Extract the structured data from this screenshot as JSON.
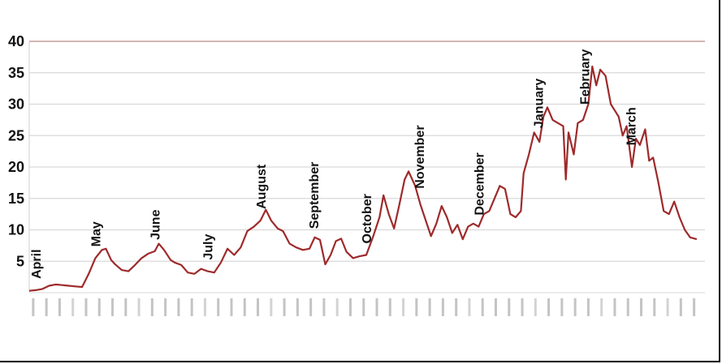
{
  "chart_data": {
    "type": "line",
    "title": "",
    "xlabel": "",
    "ylabel": "",
    "ylim": [
      0,
      40
    ],
    "yticks": [
      "5",
      "10",
      "15",
      "20",
      "25",
      "30",
      "35",
      "40"
    ],
    "grid": true,
    "line_color": "#9e2a2b",
    "month_annotations": [
      {
        "label": "April",
        "x": 0.5
      },
      {
        "label": "May",
        "x": 5
      },
      {
        "label": "June",
        "x": 9.5
      },
      {
        "label": "July",
        "x": 13.5
      },
      {
        "label": "August",
        "x": 17.5
      },
      {
        "label": "September",
        "x": 21.5
      },
      {
        "label": "October",
        "x": 25.5
      },
      {
        "label": "November",
        "x": 29.5
      },
      {
        "label": "December",
        "x": 34
      },
      {
        "label": "January",
        "x": 38.5
      },
      {
        "label": "February",
        "x": 42
      },
      {
        "label": "March",
        "x": 45.5
      }
    ],
    "series": [
      {
        "values": [
          [
            0,
            0.3
          ],
          [
            0.5,
            0.4
          ],
          [
            1,
            0.6
          ],
          [
            1.5,
            1.1
          ],
          [
            2,
            1.3
          ],
          [
            2.5,
            1.2
          ],
          [
            3,
            1.1
          ],
          [
            3.5,
            1.0
          ],
          [
            4,
            0.9
          ],
          [
            4.5,
            3.0
          ],
          [
            5,
            5.5
          ],
          [
            5.5,
            6.8
          ],
          [
            5.8,
            7.0
          ],
          [
            6.2,
            5.2
          ],
          [
            6.5,
            4.5
          ],
          [
            7,
            3.6
          ],
          [
            7.5,
            3.4
          ],
          [
            8,
            4.4
          ],
          [
            8.5,
            5.5
          ],
          [
            9,
            6.2
          ],
          [
            9.5,
            6.6
          ],
          [
            9.8,
            7.8
          ],
          [
            10.2,
            6.8
          ],
          [
            10.7,
            5.2
          ],
          [
            11,
            4.8
          ],
          [
            11.5,
            4.4
          ],
          [
            12,
            3.2
          ],
          [
            12.5,
            3.0
          ],
          [
            13,
            3.8
          ],
          [
            13.5,
            3.4
          ],
          [
            14,
            3.2
          ],
          [
            14.5,
            4.8
          ],
          [
            15,
            7.0
          ],
          [
            15.5,
            6.0
          ],
          [
            16,
            7.2
          ],
          [
            16.5,
            9.8
          ],
          [
            17,
            10.5
          ],
          [
            17.5,
            11.5
          ],
          [
            17.9,
            13.2
          ],
          [
            18.3,
            11.5
          ],
          [
            18.8,
            10.2
          ],
          [
            19.2,
            9.8
          ],
          [
            19.7,
            7.8
          ],
          [
            20.2,
            7.2
          ],
          [
            20.7,
            6.8
          ],
          [
            21.2,
            7.0
          ],
          [
            21.6,
            8.8
          ],
          [
            22,
            8.4
          ],
          [
            22.4,
            4.5
          ],
          [
            22.8,
            6.0
          ],
          [
            23.2,
            8.2
          ],
          [
            23.6,
            8.6
          ],
          [
            24,
            6.5
          ],
          [
            24.5,
            5.5
          ],
          [
            25,
            5.8
          ],
          [
            25.5,
            6.0
          ],
          [
            26,
            8.8
          ],
          [
            26.5,
            12.0
          ],
          [
            26.8,
            15.5
          ],
          [
            27.2,
            12.5
          ],
          [
            27.6,
            10.2
          ],
          [
            28,
            14.0
          ],
          [
            28.4,
            18.0
          ],
          [
            28.7,
            19.3
          ],
          [
            29.2,
            17.0
          ],
          [
            29.6,
            14.0
          ],
          [
            30,
            11.5
          ],
          [
            30.4,
            9.0
          ],
          [
            30.8,
            11.0
          ],
          [
            31.2,
            13.8
          ],
          [
            31.6,
            12.0
          ],
          [
            32,
            9.5
          ],
          [
            32.4,
            10.8
          ],
          [
            32.8,
            8.5
          ],
          [
            33.2,
            10.5
          ],
          [
            33.6,
            11.0
          ],
          [
            34,
            10.5
          ],
          [
            34.4,
            12.5
          ],
          [
            34.8,
            13.0
          ],
          [
            35.2,
            15.0
          ],
          [
            35.6,
            17.0
          ],
          [
            36,
            16.5
          ],
          [
            36.4,
            12.5
          ],
          [
            36.8,
            12.0
          ],
          [
            37.2,
            13.0
          ],
          [
            37.4,
            19.0
          ],
          [
            37.8,
            22.0
          ],
          [
            38.2,
            25.5
          ],
          [
            38.6,
            24.0
          ],
          [
            38.9,
            28.0
          ],
          [
            39.2,
            29.5
          ],
          [
            39.6,
            27.5
          ],
          [
            40,
            27.0
          ],
          [
            40.4,
            26.5
          ],
          [
            40.6,
            18.0
          ],
          [
            40.8,
            25.5
          ],
          [
            41.2,
            22.0
          ],
          [
            41.5,
            27.0
          ],
          [
            41.9,
            27.5
          ],
          [
            42.3,
            30.0
          ],
          [
            42.6,
            36.0
          ],
          [
            42.9,
            33.0
          ],
          [
            43.2,
            35.5
          ],
          [
            43.6,
            34.5
          ],
          [
            44,
            30.0
          ],
          [
            44.3,
            29.0
          ],
          [
            44.6,
            28.0
          ],
          [
            44.9,
            25.0
          ],
          [
            45.2,
            26.5
          ],
          [
            45.6,
            20.0
          ],
          [
            45.9,
            24.5
          ],
          [
            46.2,
            23.5
          ],
          [
            46.6,
            26.0
          ],
          [
            46.9,
            21.0
          ],
          [
            47.2,
            21.5
          ],
          [
            47.6,
            17.5
          ],
          [
            48,
            13.0
          ],
          [
            48.4,
            12.5
          ],
          [
            48.8,
            14.5
          ],
          [
            49.2,
            12.0
          ],
          [
            49.6,
            10.0
          ],
          [
            50,
            8.8
          ],
          [
            50.5,
            8.5
          ]
        ]
      }
    ]
  }
}
